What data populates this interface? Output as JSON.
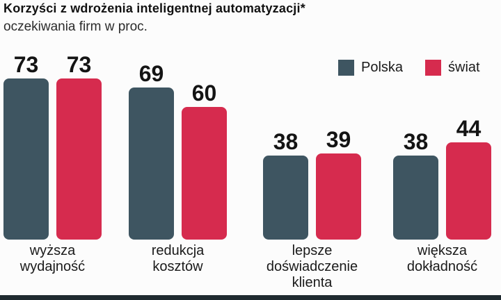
{
  "title": "Korzyści z wdrożenia inteligentnej automatyzacji*",
  "subtitle": "oczekiwania firm w proc.",
  "legend": [
    {
      "label": "Polska",
      "color": "#3e5561"
    },
    {
      "label": "świat",
      "color": "#d62b4e"
    }
  ],
  "colors": {
    "polska": "#3e5561",
    "swiat": "#d62b4e",
    "background": "#fcfcfc",
    "bottom_strip": "#1f2a30"
  },
  "chart_data": {
    "type": "bar",
    "title": "Korzyści z wdrożenia inteligentnej automatyzacji*",
    "subtitle": "oczekiwania firm w proc.",
    "categories": [
      "wyższa wydajność",
      "redukcja kosztów",
      "lepsze doświadczenie klienta",
      "większa dokładność"
    ],
    "series": [
      {
        "name": "Polska",
        "color": "#3e5561",
        "values": [
          73,
          69,
          38,
          38
        ]
      },
      {
        "name": "świat",
        "color": "#d62b4e",
        "values": [
          73,
          60,
          39,
          44
        ]
      }
    ],
    "ylim": [
      0,
      80
    ],
    "value_labels": true,
    "grid": false,
    "legend_position": "top-right",
    "unit": "proc."
  }
}
